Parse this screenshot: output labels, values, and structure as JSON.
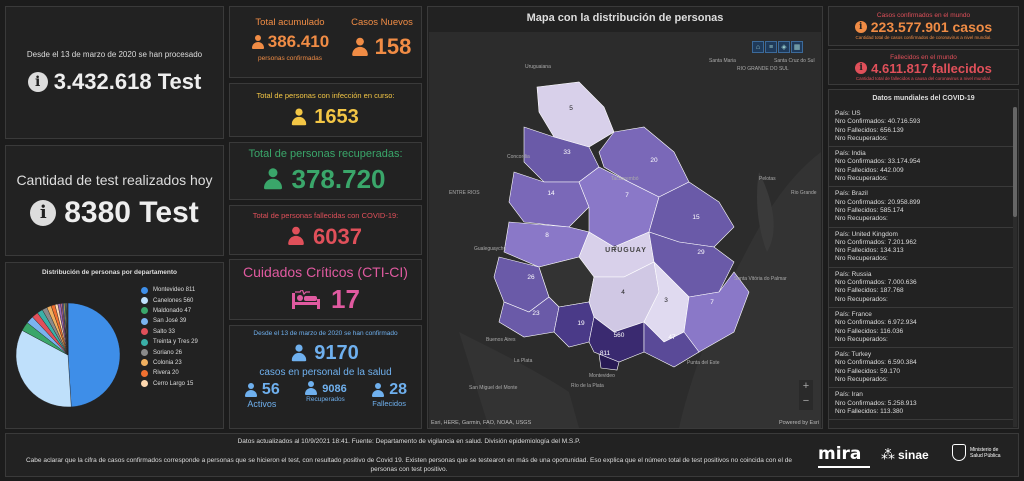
{
  "tests_total": {
    "caption": "Desde el 13 de marzo de 2020 se han procesado",
    "value": "3.432.618 Test"
  },
  "tests_today": {
    "caption": "Cantidad de test realizados hoy",
    "value": "8380 Test"
  },
  "total_acumulado": {
    "title": "Total acumulado",
    "value": "386.410",
    "sub": "personas confirmadas"
  },
  "casos_nuevos": {
    "title": "Casos Nuevos",
    "value": "158"
  },
  "en_curso": {
    "title": "Total de personas con infección en curso:",
    "value": "1653"
  },
  "recuperadas": {
    "title": "Total de personas recuperadas:",
    "value": "378.720"
  },
  "fallecidas": {
    "title": "Total de personas fallecidas con COVID-19:",
    "value": "6037"
  },
  "cti": {
    "title": "Cuidados Críticos (CTI-CI)",
    "value": "17"
  },
  "salud": {
    "caption": "Desde el 13 de marzo de 2020 se han confirmado",
    "value": "9170",
    "subtitle": "casos en personal de la salud",
    "activos_value": "56",
    "activos_label": "Activos",
    "recuperados_value": "9086",
    "recuperados_label": "Recuperados",
    "fallecidos_value": "28",
    "fallecidos_label": "Fallecidos"
  },
  "map": {
    "title": "Mapa con la distribución de personas",
    "country_label": "URUGUAY",
    "attribution": "Esri, HERE, Garmin, FAO, NOAA, USGS",
    "powered": "Powered by Esri",
    "places": [
      "Uruguaiana",
      "Santa Maria",
      "RIO GRANDE DO SUL",
      "Santa Cruz do Sul",
      "Pelotas",
      "Rio Grande",
      "ENTRE RIOS",
      "Concordia",
      "Gualeguaychú",
      "Buenos Aires",
      "La Plata",
      "San Miguel del Monte",
      "Río de la Plata",
      "Montevideo",
      "Punta del Este",
      "Santa Vitória do Palmar",
      "Tacuarembó"
    ],
    "department_values": [
      "5",
      "33",
      "20",
      "14",
      "7",
      "15",
      "8",
      "2",
      "29",
      "26",
      "4",
      "3",
      "23",
      "7",
      "19",
      "560",
      "47",
      "811"
    ],
    "zoom_in": "+",
    "zoom_out": "−"
  },
  "world": {
    "confirmed_title": "Casos confirmados en el mundo",
    "confirmed_value": "223.577.901 casos",
    "confirmed_sub": "Cantidad total de casos confirmados de coronavirus a nivel mundial.",
    "deaths_title": "Fallecidos en el mundo",
    "deaths_value": "4.611.817 fallecidos",
    "deaths_sub": "Cantidad total de fallecidos a causa del coronavirus a nivel mundial.",
    "list_title": "Datos mundiales del COVID-19",
    "countries": [
      {
        "pais": "País: US",
        "conf": "Nro Confirmados: 40.716.593",
        "fall": "Nro Fallecidos: 656.139",
        "rec": "Nro Recuperados:"
      },
      {
        "pais": "País: India",
        "conf": "Nro Confirmados: 33.174.954",
        "fall": "Nro Fallecidos: 442.009",
        "rec": "Nro Recuperados:"
      },
      {
        "pais": "País: Brazil",
        "conf": "Nro Confirmados: 20.958.899",
        "fall": "Nro Fallecidos: 585.174",
        "rec": "Nro Recuperados:"
      },
      {
        "pais": "País: United Kingdom",
        "conf": "Nro Confirmados: 7.201.962",
        "fall": "Nro Fallecidos: 134.313",
        "rec": "Nro Recuperados:"
      },
      {
        "pais": "País: Russia",
        "conf": "Nro Confirmados: 7.000.636",
        "fall": "Nro Fallecidos: 187.768",
        "rec": "Nro Recuperados:"
      },
      {
        "pais": "País: France",
        "conf": "Nro Confirmados: 6.972.934",
        "fall": "Nro Fallecidos: 116.036",
        "rec": "Nro Recuperados:"
      },
      {
        "pais": "País: Turkey",
        "conf": "Nro Confirmados: 6.590.384",
        "fall": "Nro Fallecidos: 59.170",
        "rec": "Nro Recuperados:"
      },
      {
        "pais": "País: Iran",
        "conf": "Nro Confirmados: 5.258.913",
        "fall": "Nro Fallecidos: 113.380",
        "rec": ""
      }
    ]
  },
  "chart_data": {
    "type": "pie",
    "title": "Distribución de personas por departamento",
    "categories": [
      "Montevideo",
      "Canelones",
      "Maldonado",
      "San José",
      "Salto",
      "Treinta y Tres",
      "Soriano",
      "Colonia",
      "Rivera",
      "Cerro Largo"
    ],
    "values": [
      811,
      560,
      47,
      39,
      33,
      29,
      26,
      23,
      20,
      15
    ],
    "colors": [
      "#3e8ee8",
      "#bfe0fb",
      "#3aa66a",
      "#7ab3f0",
      "#e0505a",
      "#3ab0a8",
      "#8a8a8a",
      "#f0b060",
      "#f07030",
      "#ffd9b0"
    ],
    "other_values": [
      14,
      8,
      7,
      7,
      5,
      4,
      3,
      2,
      2
    ],
    "other_colors": [
      "#9a6ab8",
      "#c06a8a",
      "#6a6ac0",
      "#d0c060",
      "#60a0a0",
      "#a0a0d0",
      "#c09060",
      "#80c080",
      "#d08080"
    ],
    "legend": "right"
  },
  "footer": {
    "updated": "Datos actualizados al 10/9/2021 18:41. Fuente: Departamento de vigilancia en salud. División epidemiología del M.S.P.",
    "note": "Cabe aclarar que la cifra de casos confirmados corresponde a personas que se hicieron el test, con resultado positivo de Covid 19. Existen personas que se testearon en más de una oportunidad. Eso explica que el número total de test positivos no coincida con el de personas con test positivo.",
    "logo_mira": "mira",
    "logo_sinae": "sinae",
    "logo_msp": "Ministerio de Salud Pública"
  },
  "colors": {
    "background": "#1c1c1c",
    "panel": "#222222",
    "orange": "#f08c45",
    "yellow": "#f3c645",
    "green": "#3aa66a",
    "red": "#e0505a",
    "pink": "#e05aa0",
    "blue": "#6fb0ee"
  }
}
